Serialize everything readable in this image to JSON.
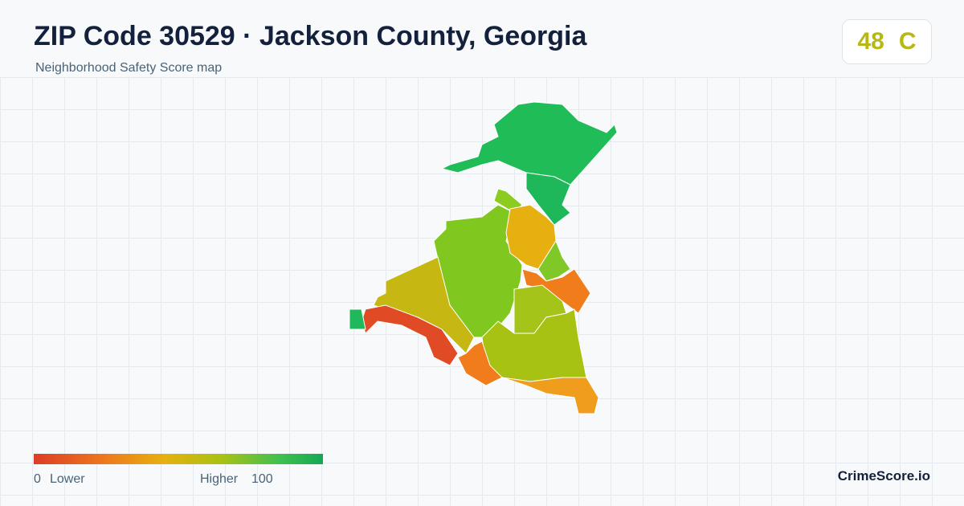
{
  "header": {
    "title": "ZIP Code 30529 · Jackson County, Georgia",
    "subtitle": "Neighborhood Safety Score map"
  },
  "score": {
    "value": "48",
    "grade": "C"
  },
  "legend": {
    "min": "0",
    "min_label": "Lower",
    "max_label": "Higher",
    "max": "100"
  },
  "brand": "CrimeScore.io"
}
